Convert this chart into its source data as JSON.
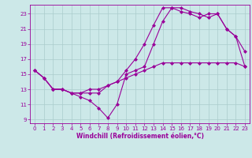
{
  "background_color": "#cce8e8",
  "grid_color": "#aacccc",
  "line_color": "#990099",
  "marker": "D",
  "markersize": 2,
  "linewidth": 0.8,
  "xlabel": "Windchill (Refroidissement éolien,°C)",
  "xlabel_fontsize": 5.5,
  "tick_fontsize": 5.0,
  "xlim": [
    -0.5,
    23.5
  ],
  "ylim": [
    8.5,
    24.2
  ],
  "xticks": [
    0,
    1,
    2,
    3,
    4,
    5,
    6,
    7,
    8,
    9,
    10,
    11,
    12,
    13,
    14,
    15,
    16,
    17,
    18,
    19,
    20,
    21,
    22,
    23
  ],
  "yticks": [
    9,
    11,
    13,
    15,
    17,
    19,
    21,
    23
  ],
  "line1_x": [
    0,
    1,
    2,
    3,
    4,
    5,
    6,
    7,
    8,
    9,
    10,
    11,
    12,
    13,
    14,
    15,
    16,
    17,
    18,
    19,
    20,
    21,
    22,
    23
  ],
  "line1_y": [
    15.5,
    14.5,
    13.0,
    13.0,
    12.5,
    12.0,
    11.5,
    10.5,
    9.2,
    11.0,
    15.0,
    15.5,
    16.0,
    19.0,
    22.0,
    23.8,
    23.8,
    23.3,
    23.0,
    22.5,
    23.0,
    21.0,
    20.0,
    18.0
  ],
  "line2_x": [
    0,
    1,
    2,
    3,
    4,
    5,
    6,
    7,
    8,
    9,
    10,
    11,
    12,
    13,
    14,
    15,
    16,
    17,
    18,
    19,
    20,
    21,
    22,
    23
  ],
  "line2_y": [
    15.5,
    14.5,
    13.0,
    13.0,
    12.5,
    12.5,
    12.5,
    12.5,
    13.5,
    14.0,
    14.5,
    15.0,
    15.5,
    16.0,
    16.5,
    16.5,
    16.5,
    16.5,
    16.5,
    16.5,
    16.5,
    16.5,
    16.5,
    16.0
  ],
  "line3_x": [
    0,
    1,
    2,
    3,
    4,
    5,
    6,
    7,
    8,
    9,
    10,
    11,
    12,
    13,
    14,
    15,
    16,
    17,
    18,
    19,
    20,
    21,
    22,
    23
  ],
  "line3_y": [
    15.5,
    14.5,
    13.0,
    13.0,
    12.5,
    12.5,
    13.0,
    13.0,
    13.5,
    14.0,
    15.5,
    17.0,
    19.0,
    21.5,
    23.8,
    23.8,
    23.3,
    23.0,
    22.5,
    23.0,
    23.0,
    21.0,
    20.0,
    16.0
  ]
}
